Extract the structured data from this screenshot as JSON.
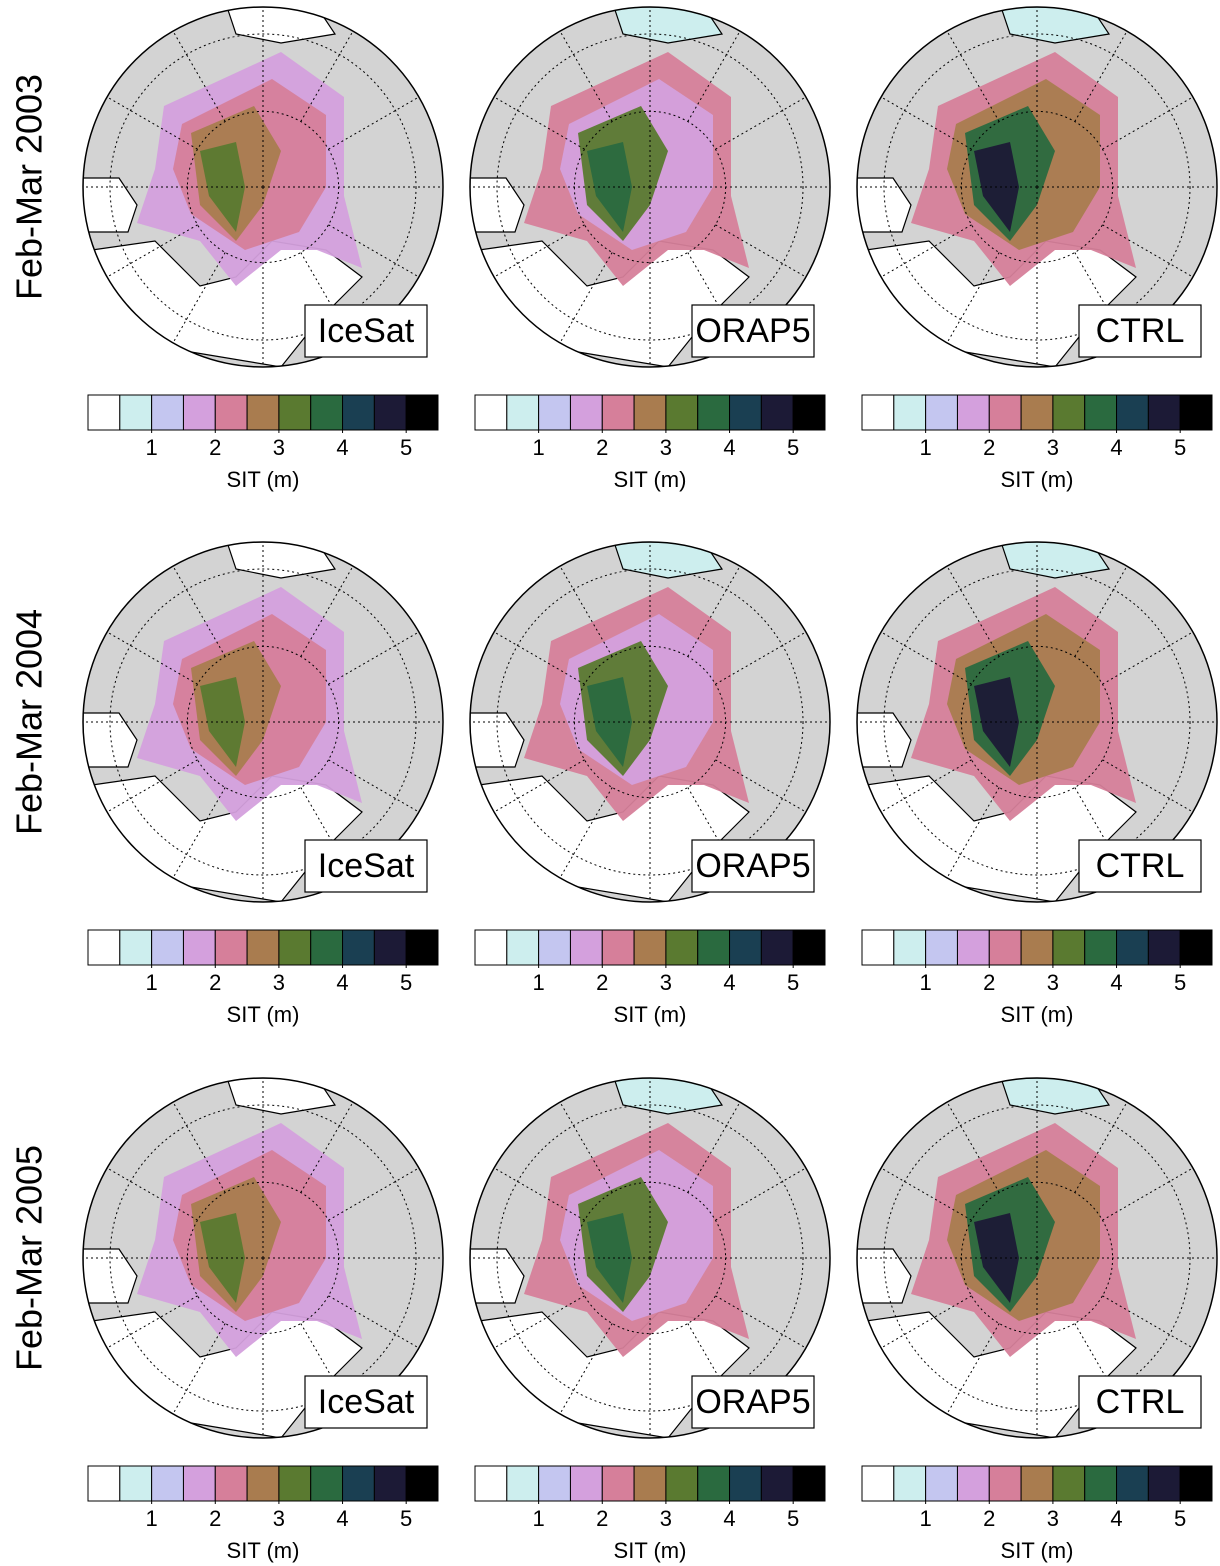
{
  "rows": [
    {
      "label": "Feb-Mar 2003",
      "panels": [
        {
          "label": "IceSat"
        },
        {
          "label": "ORAP5"
        },
        {
          "label": "CTRL"
        }
      ]
    },
    {
      "label": "Feb-Mar 2004",
      "panels": [
        {
          "label": "IceSat"
        },
        {
          "label": "ORAP5"
        },
        {
          "label": "CTRL"
        }
      ]
    },
    {
      "label": "Feb-Mar 2005",
      "panels": [
        {
          "label": "IceSat"
        },
        {
          "label": "ORAP5"
        },
        {
          "label": "CTRL"
        }
      ]
    }
  ],
  "colorbar": {
    "label": "SIT (m)",
    "levels": [
      0,
      0.5,
      1,
      1.5,
      2,
      2.5,
      3,
      3.5,
      4,
      4.5,
      5,
      5.5
    ],
    "colors": [
      "#ffffff",
      "#cdeeee",
      "#c4c6f0",
      "#d4a0dd",
      "#d67f9a",
      "#a97c4f",
      "#5a7a30",
      "#2a6a3f",
      "#1a3f52",
      "#1c1a36",
      "#000000"
    ],
    "ticks": [
      1,
      2,
      3,
      4,
      5
    ]
  }
}
